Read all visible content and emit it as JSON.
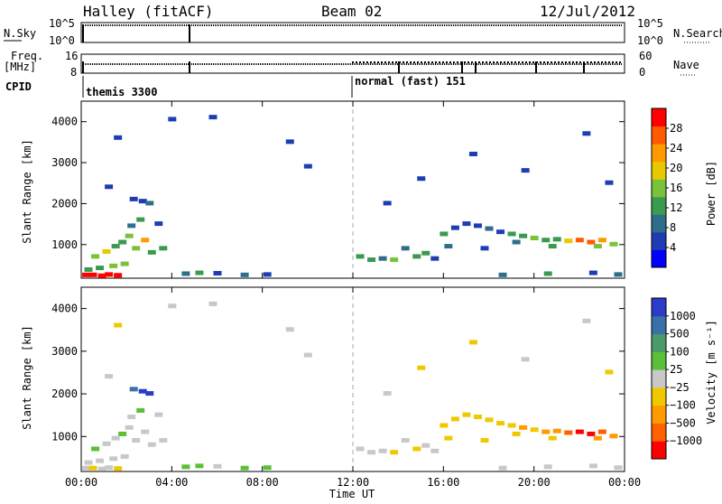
{
  "header": {
    "station": "Halley (fitACF)",
    "beam": "Beam 02",
    "date": "12/Jul/2012"
  },
  "labels": {
    "nsky": "N.Sky",
    "nsearch": "N.Search",
    "freq": "Freq.",
    "freq_unit": "[MHz]",
    "nave": "Nave",
    "cpid": "CPID",
    "cpid_left": "themis 3300",
    "cpid_right": "normal (fast) 151",
    "ylabel": "Slant Range [km]",
    "xlabel": "Time UT",
    "power_label": "Power [dB]",
    "velocity_label": "Velocity [m s⁻¹]"
  },
  "small_ticks": {
    "sky_left": [
      "10^5",
      "10^0"
    ],
    "sky_right": [
      "10^5",
      "10^0"
    ],
    "freq_left": [
      "16",
      "8"
    ],
    "nave_right": [
      "60",
      "0"
    ]
  },
  "colors": {
    "power": [
      "#0000ff",
      "#1e3cb4",
      "#2e6e8a",
      "#3a9a50",
      "#7ac23a",
      "#e8c800",
      "#ff9a00",
      "#ff5a00",
      "#ff0000"
    ],
    "velocity": [
      "#2a3cc8",
      "#3a70a8",
      "#4a9a6a",
      "#5ac038",
      "#c8c8c8",
      "#f0c800",
      "#ff9a00",
      "#ff6000",
      "#ff0000"
    ],
    "axis": "#000000",
    "divider": "#aaaaaa"
  },
  "chart_data": [
    {
      "type": "heatmap",
      "title": "Power",
      "xlabel": "Time UT",
      "ylabel": "Slant Range [km]",
      "x_ticks": [
        "00:00",
        "04:00",
        "08:00",
        "12:00",
        "16:00",
        "20:00",
        "00:00"
      ],
      "xlim": [
        0,
        24
      ],
      "ylim": [
        180,
        4500
      ],
      "y_ticks": [
        1000,
        2000,
        3000,
        4000
      ],
      "colorbar": {
        "label": "Power [dB]",
        "ticks": [
          "4",
          "8",
          "12",
          "16",
          "20",
          "24",
          "28"
        ],
        "range": [
          0,
          30
        ]
      },
      "cells": [
        [
          0.2,
          250,
          28
        ],
        [
          0.5,
          250,
          30
        ],
        [
          0.9,
          230,
          28
        ],
        [
          1.2,
          260,
          29
        ],
        [
          1.6,
          240,
          27
        ],
        [
          0.3,
          380,
          12
        ],
        [
          0.8,
          420,
          10
        ],
        [
          1.4,
          470,
          16
        ],
        [
          1.9,
          520,
          14
        ],
        [
          0.6,
          700,
          14
        ],
        [
          1.1,
          820,
          18
        ],
        [
          1.5,
          950,
          12
        ],
        [
          1.8,
          1050,
          10
        ],
        [
          2.1,
          1200,
          14
        ],
        [
          2.4,
          900,
          16
        ],
        [
          2.8,
          1100,
          20
        ],
        [
          2.2,
          1450,
          8
        ],
        [
          2.6,
          1600,
          10
        ],
        [
          2.3,
          2100,
          6
        ],
        [
          2.7,
          2050,
          4
        ],
        [
          3.0,
          2000,
          8
        ],
        [
          3.4,
          1500,
          6
        ],
        [
          1.2,
          2400,
          4
        ],
        [
          1.6,
          3600,
          6
        ],
        [
          3.1,
          800,
          10
        ],
        [
          3.6,
          900,
          12
        ],
        [
          4.6,
          280,
          8
        ],
        [
          5.2,
          300,
          10
        ],
        [
          6.0,
          290,
          6
        ],
        [
          7.2,
          250,
          8
        ],
        [
          8.2,
          260,
          6
        ],
        [
          4.0,
          4050,
          4
        ],
        [
          5.8,
          4100,
          6
        ],
        [
          9.2,
          3500,
          4
        ],
        [
          10.0,
          2900,
          4
        ],
        [
          12.3,
          700,
          10
        ],
        [
          12.8,
          620,
          12
        ],
        [
          13.3,
          650,
          8
        ],
        [
          13.8,
          620,
          16
        ],
        [
          14.3,
          900,
          8
        ],
        [
          14.8,
          700,
          12
        ],
        [
          15.2,
          780,
          10
        ],
        [
          15.6,
          650,
          6
        ],
        [
          16.2,
          950,
          8
        ],
        [
          16.0,
          1250,
          10
        ],
        [
          16.5,
          1400,
          6
        ],
        [
          17.0,
          1500,
          4
        ],
        [
          17.5,
          1450,
          6
        ],
        [
          18.0,
          1380,
          8
        ],
        [
          18.5,
          1300,
          6
        ],
        [
          19.0,
          1250,
          10
        ],
        [
          19.5,
          1200,
          12
        ],
        [
          20.0,
          1150,
          14
        ],
        [
          20.5,
          1100,
          10
        ],
        [
          21.0,
          1120,
          12
        ],
        [
          21.5,
          1080,
          18
        ],
        [
          22.0,
          1100,
          24
        ],
        [
          22.5,
          1050,
          26
        ],
        [
          23.0,
          1100,
          20
        ],
        [
          23.5,
          1000,
          16
        ],
        [
          19.2,
          1050,
          8
        ],
        [
          20.8,
          950,
          12
        ],
        [
          22.8,
          950,
          14
        ],
        [
          17.8,
          900,
          6
        ],
        [
          13.5,
          2000,
          4
        ],
        [
          15.0,
          2600,
          4
        ],
        [
          17.3,
          3200,
          4
        ],
        [
          19.6,
          2800,
          4
        ],
        [
          22.3,
          3700,
          4
        ],
        [
          23.3,
          2500,
          4
        ],
        [
          18.6,
          250,
          8
        ],
        [
          20.6,
          280,
          10
        ],
        [
          22.6,
          300,
          6
        ],
        [
          23.7,
          260,
          8
        ]
      ]
    },
    {
      "type": "heatmap",
      "title": "Velocity",
      "xlabel": "Time UT",
      "ylabel": "Slant Range [km]",
      "x_ticks": [
        "00:00",
        "04:00",
        "08:00",
        "12:00",
        "16:00",
        "20:00",
        "00:00"
      ],
      "xlim": [
        0,
        24
      ],
      "ylim": [
        180,
        4500
      ],
      "y_ticks": [
        1000,
        2000,
        3000,
        4000
      ],
      "colorbar": {
        "label": "Velocity [m s⁻¹]",
        "ticks": [
          "1000",
          "500",
          "100",
          "25",
          "−25",
          "−100",
          "−500",
          "−1000"
        ],
        "range": [
          -1000,
          1000
        ]
      },
      "cells": [
        [
          0.2,
          250,
          -80
        ],
        [
          0.5,
          250,
          -120
        ],
        [
          0.9,
          230,
          -90
        ],
        [
          1.2,
          260,
          -100
        ],
        [
          1.6,
          240,
          -150
        ],
        [
          0.3,
          380,
          60
        ],
        [
          0.8,
          420,
          80
        ],
        [
          1.4,
          470,
          -40
        ],
        [
          1.9,
          520,
          40
        ],
        [
          0.6,
          700,
          120
        ],
        [
          1.1,
          820,
          90
        ],
        [
          1.5,
          950,
          -60
        ],
        [
          1.8,
          1050,
          200
        ],
        [
          2.1,
          1200,
          60
        ],
        [
          2.4,
          900,
          110
        ],
        [
          2.8,
          1100,
          -90
        ],
        [
          2.2,
          1450,
          80
        ],
        [
          2.6,
          1600,
          150
        ],
        [
          2.3,
          2100,
          600
        ],
        [
          2.7,
          2050,
          900
        ],
        [
          3.0,
          2000,
          800
        ],
        [
          3.4,
          1500,
          40
        ],
        [
          1.2,
          2400,
          30
        ],
        [
          1.6,
          3600,
          -200
        ],
        [
          3.1,
          800,
          -60
        ],
        [
          3.6,
          900,
          100
        ],
        [
          4.6,
          280,
          300
        ],
        [
          5.2,
          300,
          150
        ],
        [
          6.0,
          290,
          60
        ],
        [
          7.2,
          250,
          200
        ],
        [
          8.2,
          260,
          120
        ],
        [
          4.0,
          4050,
          -40
        ],
        [
          5.8,
          4100,
          -80
        ],
        [
          9.2,
          3500,
          -60
        ],
        [
          10.0,
          2900,
          -70
        ],
        [
          12.3,
          700,
          20
        ],
        [
          12.8,
          620,
          -50
        ],
        [
          13.3,
          650,
          30
        ],
        [
          13.8,
          620,
          -150
        ],
        [
          14.3,
          900,
          80
        ],
        [
          14.8,
          700,
          -120
        ],
        [
          15.2,
          780,
          60
        ],
        [
          15.6,
          650,
          -80
        ],
        [
          16.2,
          950,
          -180
        ],
        [
          16.0,
          1250,
          -300
        ],
        [
          16.5,
          1400,
          -250
        ],
        [
          17.0,
          1500,
          -220
        ],
        [
          17.5,
          1450,
          -300
        ],
        [
          18.0,
          1380,
          -260
        ],
        [
          18.5,
          1300,
          -280
        ],
        [
          19.0,
          1250,
          -320
        ],
        [
          19.5,
          1200,
          -350
        ],
        [
          20.0,
          1150,
          -300
        ],
        [
          20.5,
          1100,
          -400
        ],
        [
          21.0,
          1120,
          -450
        ],
        [
          21.5,
          1080,
          -600
        ],
        [
          22.0,
          1100,
          -800
        ],
        [
          22.5,
          1050,
          -900
        ],
        [
          23.0,
          1100,
          -700
        ],
        [
          23.5,
          1000,
          -500
        ],
        [
          19.2,
          1050,
          -200
        ],
        [
          20.8,
          950,
          -150
        ],
        [
          22.8,
          950,
          -400
        ],
        [
          17.8,
          900,
          -120
        ],
        [
          13.5,
          2000,
          -60
        ],
        [
          15.0,
          2600,
          -200
        ],
        [
          17.3,
          3200,
          -150
        ],
        [
          19.6,
          2800,
          -100
        ],
        [
          22.3,
          3700,
          -80
        ],
        [
          23.3,
          2500,
          -120
        ],
        [
          18.6,
          250,
          30
        ],
        [
          20.6,
          280,
          -40
        ],
        [
          22.6,
          300,
          20
        ],
        [
          23.7,
          260,
          -30
        ]
      ]
    }
  ]
}
